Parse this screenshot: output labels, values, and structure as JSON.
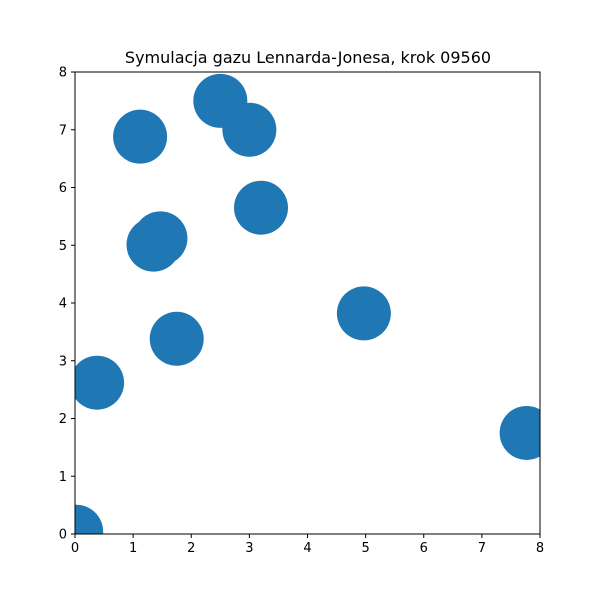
{
  "chart_data": {
    "type": "scatter",
    "title": "Symulacja gazu Lennarda-Jonesa, krok 09560",
    "xlabel": "",
    "ylabel": "",
    "xlim": [
      0,
      8
    ],
    "ylim": [
      0,
      8
    ],
    "x_ticks": [
      "0",
      "1",
      "2",
      "3",
      "4",
      "5",
      "6",
      "7",
      "8"
    ],
    "y_ticks": [
      "0",
      "1",
      "2",
      "3",
      "4",
      "5",
      "6",
      "7",
      "8"
    ],
    "grid": false,
    "marker_color": "#1f77b4",
    "points": [
      {
        "x": 2.5,
        "y": 7.5
      },
      {
        "x": 3.0,
        "y": 7.0
      },
      {
        "x": 1.12,
        "y": 6.88
      },
      {
        "x": 3.2,
        "y": 5.65
      },
      {
        "x": 1.47,
        "y": 5.12
      },
      {
        "x": 1.35,
        "y": 5.01
      },
      {
        "x": 4.97,
        "y": 3.82
      },
      {
        "x": 1.75,
        "y": 3.38
      },
      {
        "x": 0.38,
        "y": 2.62
      },
      {
        "x": 7.77,
        "y": 1.75
      },
      {
        "x": 0.02,
        "y": 0.04
      }
    ]
  }
}
